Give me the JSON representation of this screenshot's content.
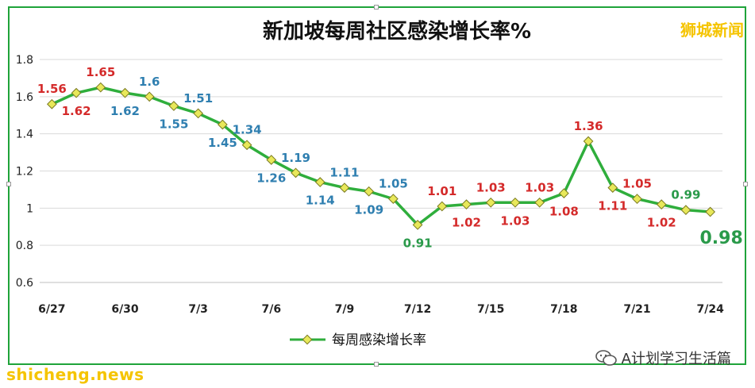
{
  "chart_data": {
    "type": "line",
    "title": "新加坡每周社区感染增长率%",
    "x": [
      "6/27",
      "6/28",
      "6/29",
      "6/30",
      "7/1",
      "7/2",
      "7/3",
      "7/4",
      "7/5",
      "7/6",
      "7/7",
      "7/8",
      "7/9",
      "7/10",
      "7/11",
      "7/12",
      "7/13",
      "7/14",
      "7/15",
      "7/16",
      "7/17",
      "7/18",
      "7/19",
      "7/20",
      "7/21",
      "7/22",
      "7/23",
      "7/24"
    ],
    "tick_labels": [
      "6/27",
      "6/30",
      "7/3",
      "7/6",
      "7/9",
      "7/12",
      "7/15",
      "7/18",
      "7/21",
      "7/24"
    ],
    "series": [
      {
        "name": "每周感染增长率",
        "values": [
          1.56,
          1.62,
          1.65,
          1.62,
          1.6,
          1.55,
          1.51,
          1.45,
          1.34,
          1.26,
          1.19,
          1.14,
          1.11,
          1.09,
          1.05,
          0.91,
          1.01,
          1.02,
          1.03,
          1.03,
          1.03,
          1.08,
          1.36,
          1.11,
          1.05,
          1.02,
          0.99,
          0.98
        ]
      }
    ],
    "data_labels": [
      {
        "i": 0,
        "text": "1.56",
        "color": "#d42a2a",
        "pos": "above"
      },
      {
        "i": 1,
        "text": "1.62",
        "color": "#d42a2a",
        "pos": "below"
      },
      {
        "i": 2,
        "text": "1.65",
        "color": "#d42a2a",
        "pos": "above"
      },
      {
        "i": 3,
        "text": "1.62",
        "color": "#2f7fb0",
        "pos": "below"
      },
      {
        "i": 4,
        "text": "1.6",
        "color": "#2f7fb0",
        "pos": "above"
      },
      {
        "i": 5,
        "text": "1.55",
        "color": "#2f7fb0",
        "pos": "below"
      },
      {
        "i": 6,
        "text": "1.51",
        "color": "#2f7fb0",
        "pos": "above"
      },
      {
        "i": 7,
        "text": "1.45",
        "color": "#2f7fb0",
        "pos": "below"
      },
      {
        "i": 8,
        "text": "1.34",
        "color": "#2f7fb0",
        "pos": "above"
      },
      {
        "i": 9,
        "text": "1.26",
        "color": "#2f7fb0",
        "pos": "below"
      },
      {
        "i": 10,
        "text": "1.19",
        "color": "#2f7fb0",
        "pos": "above"
      },
      {
        "i": 11,
        "text": "1.14",
        "color": "#2f7fb0",
        "pos": "below"
      },
      {
        "i": 12,
        "text": "1.11",
        "color": "#2f7fb0",
        "pos": "above"
      },
      {
        "i": 13,
        "text": "1.09",
        "color": "#2f7fb0",
        "pos": "below"
      },
      {
        "i": 14,
        "text": "1.05",
        "color": "#2f7fb0",
        "pos": "above"
      },
      {
        "i": 15,
        "text": "0.91",
        "color": "#2a9a4a",
        "pos": "below"
      },
      {
        "i": 16,
        "text": "1.01",
        "color": "#d42a2a",
        "pos": "above"
      },
      {
        "i": 17,
        "text": "1.02",
        "color": "#d42a2a",
        "pos": "below"
      },
      {
        "i": 18,
        "text": "1.03",
        "color": "#d42a2a",
        "pos": "above"
      },
      {
        "i": 19,
        "text": "1.03",
        "color": "#d42a2a",
        "pos": "below"
      },
      {
        "i": 20,
        "text": "1.03",
        "color": "#d42a2a",
        "pos": "above"
      },
      {
        "i": 21,
        "text": "1.08",
        "color": "#d42a2a",
        "pos": "below"
      },
      {
        "i": 22,
        "text": "1.36",
        "color": "#d42a2a",
        "pos": "above"
      },
      {
        "i": 23,
        "text": "1.11",
        "color": "#d42a2a",
        "pos": "below"
      },
      {
        "i": 24,
        "text": "1.05",
        "color": "#d42a2a",
        "pos": "above"
      },
      {
        "i": 25,
        "text": "1.02",
        "color": "#d42a2a",
        "pos": "below"
      },
      {
        "i": 26,
        "text": "0.99",
        "color": "#2a9a4a",
        "pos": "above"
      },
      {
        "i": 27,
        "text": "0.98",
        "color": "#2a9a4a",
        "pos": "below-right",
        "emphasis": true
      }
    ],
    "ylim": [
      0.6,
      1.8
    ],
    "y_ticks": [
      "0.6",
      "0.8",
      "1",
      "1.2",
      "1.4",
      "1.6",
      "1.8"
    ],
    "grid": true,
    "legend": "bottom",
    "line_color": "#2fae3c",
    "marker_color": "#e8e85a"
  },
  "overlay": {
    "brand": "狮城新闻",
    "watermark": "shicheng.news",
    "wechat": "A计划学习生活篇"
  }
}
